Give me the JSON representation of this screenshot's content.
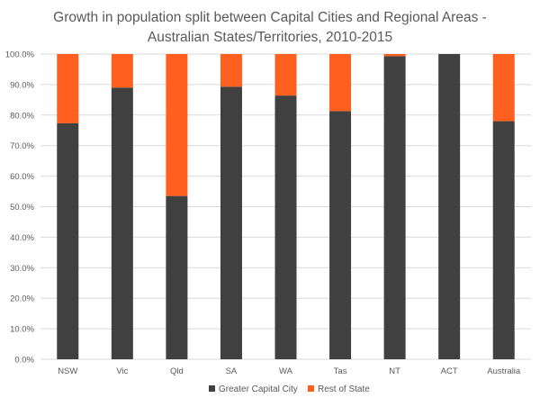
{
  "chart_data": {
    "type": "bar",
    "stacked": true,
    "title": [
      "Growth in population split between Capital Cities and Regional Areas -",
      "Australian States/Territories, 2010-2015"
    ],
    "categories": [
      "NSW",
      "Vic",
      "Qld",
      "SA",
      "WA",
      "Tas",
      "NT",
      "ACT",
      "Australia"
    ],
    "series": [
      {
        "name": "Greater Capital City",
        "color": "#404040",
        "values": [
          77.3,
          89.0,
          53.5,
          89.3,
          86.4,
          81.3,
          99.3,
          100.0,
          78.0
        ]
      },
      {
        "name": "Rest of State",
        "color": "#ff5f1f",
        "values": [
          22.7,
          11.0,
          46.5,
          10.7,
          13.6,
          18.7,
          0.7,
          0.0,
          22.0
        ]
      }
    ],
    "yticks": [
      "0.0%",
      "10.0%",
      "20.0%",
      "30.0%",
      "40.0%",
      "50.0%",
      "60.0%",
      "70.0%",
      "80.0%",
      "90.0%",
      "100.0%"
    ],
    "ylim": [
      0,
      100
    ],
    "grid": true,
    "legend_position": "bottom"
  }
}
